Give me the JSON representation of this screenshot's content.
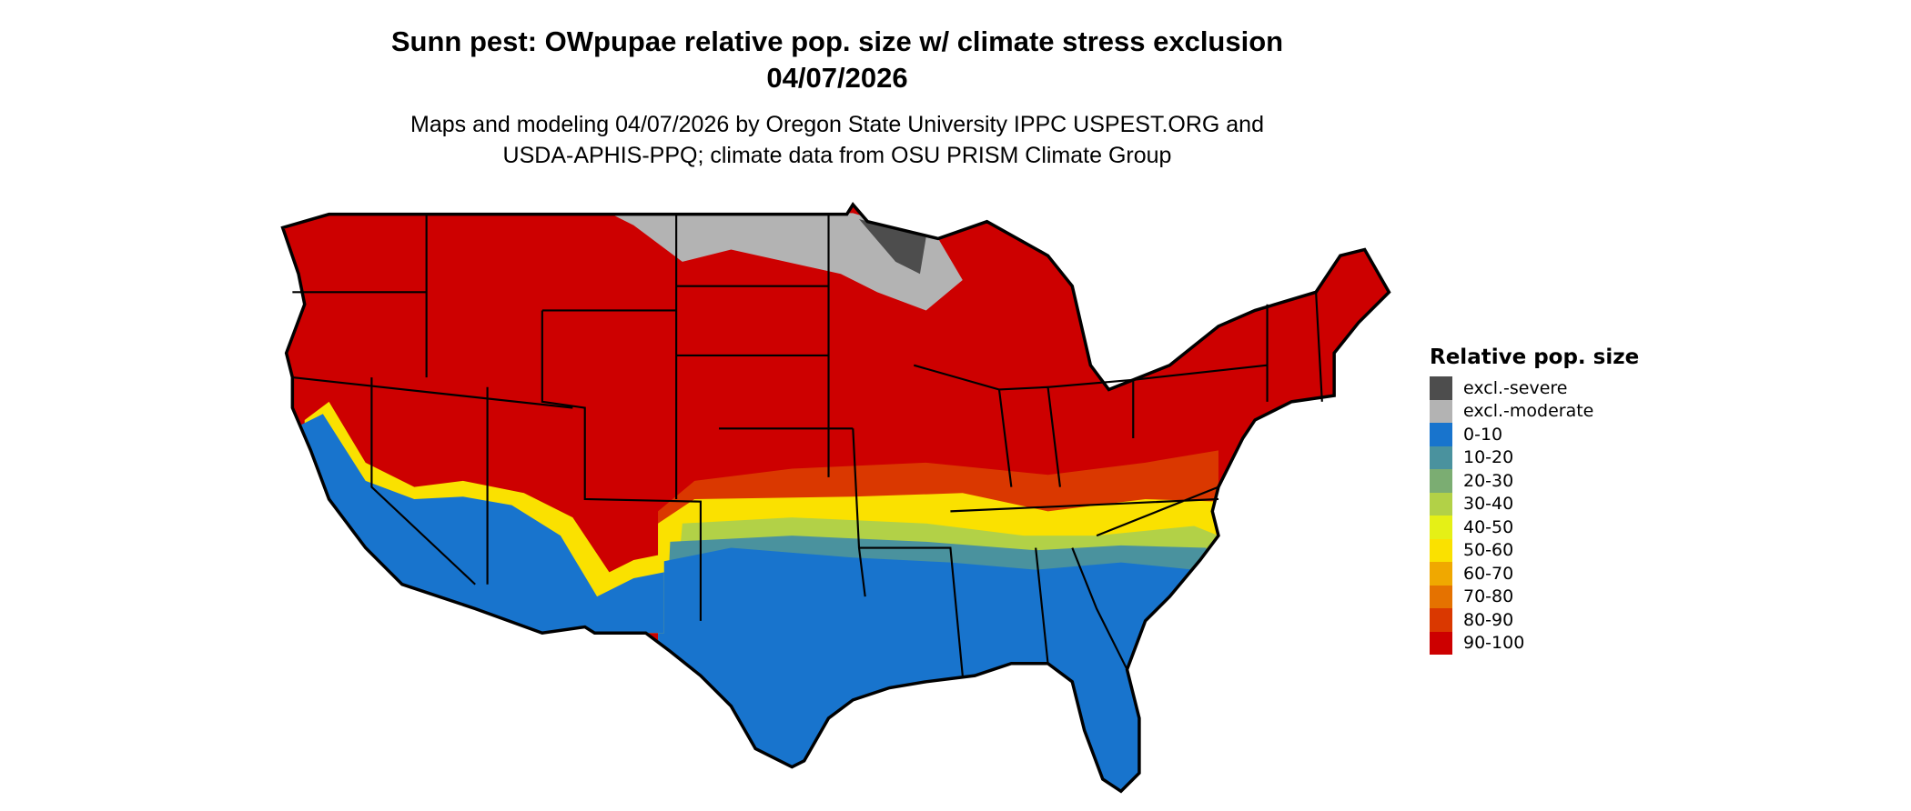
{
  "chart_data": {
    "type": "map",
    "title": "Sunn pest: OWpupae relative pop. size w/ climate stress exclusion",
    "date": "04/07/2026",
    "subtitle_line1": "Maps and modeling 04/07/2026 by Oregon State University IPPC USPEST.ORG and",
    "subtitle_line2": "USDA-APHIS-PPQ; climate data from OSU PRISM Climate Group",
    "region": "Contiguous United States",
    "legend": {
      "title": "Relative pop. size",
      "placement": "right",
      "items": [
        {
          "label": "excl.-severe",
          "color": "#4d4d4d"
        },
        {
          "label": "excl.-moderate",
          "color": "#b3b3b3"
        },
        {
          "label": "0-10",
          "color": "#1874cd"
        },
        {
          "label": "10-20",
          "color": "#4a929e"
        },
        {
          "label": "20-30",
          "color": "#7bad72"
        },
        {
          "label": "30-40",
          "color": "#b2d147"
        },
        {
          "label": "40-50",
          "color": "#e5f016"
        },
        {
          "label": "50-60",
          "color": "#fae100"
        },
        {
          "label": "60-70",
          "color": "#f0a800"
        },
        {
          "label": "70-80",
          "color": "#e57200"
        },
        {
          "label": "80-90",
          "color": "#da3800"
        },
        {
          "label": "90-100",
          "color": "#cd0000"
        }
      ]
    }
  }
}
